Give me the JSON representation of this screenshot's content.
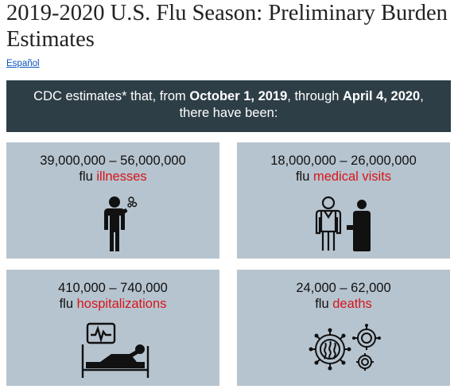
{
  "page": {
    "title": "2019-2020 U.S. Flu Season: Preliminary Burden Estimates",
    "language_link": "Español"
  },
  "banner": {
    "prefix": "CDC estimates* that, from ",
    "start_date": "October 1, 2019",
    "middle": ", through ",
    "end_date": "April 4, 2020",
    "suffix": ",",
    "line2": "there have been:"
  },
  "cards": [
    {
      "range": "39,000,000 – 56,000,000",
      "prefix": "flu ",
      "label": "illnesses",
      "icon": "sick-person-icon"
    },
    {
      "range": "18,000,000 – 26,000,000",
      "prefix": "flu ",
      "label": "medical visits",
      "icon": "doctor-patient-icon"
    },
    {
      "range": "410,000 – 740,000",
      "prefix": "flu ",
      "label": "hospitalizations",
      "icon": "hospital-bed-icon"
    },
    {
      "range": "24,000 – 62,000",
      "prefix": "flu ",
      "label": "deaths",
      "icon": "virus-icon"
    }
  ],
  "colors": {
    "banner_bg": "#2e3e47",
    "card_bg": "#b6c4cf",
    "highlight": "#d7141a",
    "link": "#0a53be"
  }
}
